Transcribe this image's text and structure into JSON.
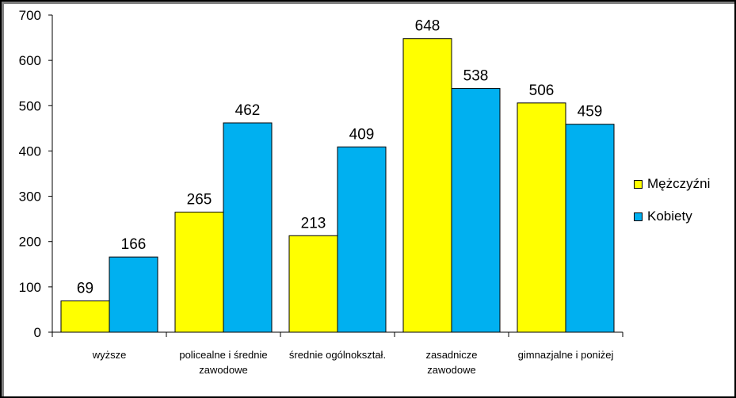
{
  "chart_data": {
    "type": "bar",
    "title": "",
    "xlabel": "",
    "ylabel": "",
    "categories": [
      [
        "wyższe"
      ],
      [
        "policealne i średnie",
        "zawodowe"
      ],
      [
        "średnie ogólnokształ."
      ],
      [
        "zasadnicze",
        "zawodowe"
      ],
      [
        "gimnazjalne i poniżej"
      ]
    ],
    "series": [
      {
        "name": "Mężczyźni",
        "color": "#ffff00",
        "values": [
          69,
          265,
          213,
          648,
          506
        ]
      },
      {
        "name": "Kobiety",
        "color": "#00b0f0",
        "values": [
          166,
          462,
          409,
          538,
          459
        ]
      }
    ],
    "ylim": [
      0,
      700
    ],
    "yticks": [
      "0",
      "100",
      "200",
      "300",
      "400",
      "500",
      "600",
      "700"
    ],
    "grid": false,
    "legend_position": "right",
    "data_labels": true
  }
}
